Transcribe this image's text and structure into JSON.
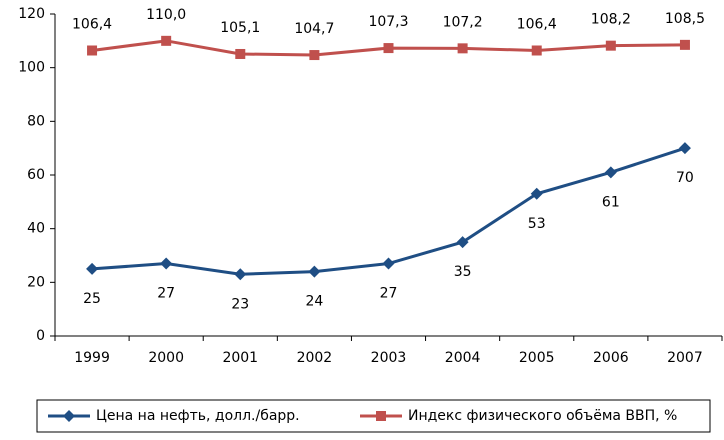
{
  "chart_data": {
    "type": "line",
    "categories": [
      "1999",
      "2000",
      "2001",
      "2002",
      "2003",
      "2004",
      "2005",
      "2006",
      "2007"
    ],
    "series": [
      {
        "name": "Цена на нефть, долл./барр.",
        "color": "#1f4e84",
        "marker": "diamond",
        "values": [
          25,
          27,
          23,
          24,
          27,
          35,
          53,
          61,
          70
        ]
      },
      {
        "name": "Индекс физического объёма ВВП, %",
        "color": "#c0504d",
        "marker": "square",
        "values": [
          106.4,
          110.0,
          105.1,
          104.7,
          107.3,
          107.2,
          106.4,
          108.2,
          108.5
        ],
        "value_labels": [
          "106,4",
          "110,0",
          "105,1",
          "104,7",
          "107,3",
          "107,2",
          "106,4",
          "108,2",
          "108,5"
        ]
      }
    ],
    "ylim": [
      0,
      120
    ],
    "yticks": [
      0,
      20,
      40,
      60,
      80,
      100,
      120
    ],
    "grid": false,
    "legend": "bottom"
  }
}
